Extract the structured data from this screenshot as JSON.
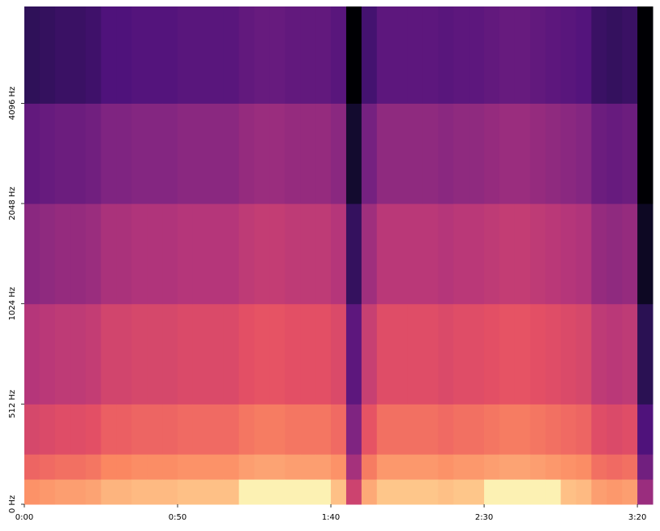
{
  "chart_data": {
    "type": "spectrogram",
    "colormap": "magma",
    "yscale": "symlog",
    "xlim": [
      0,
      205
    ],
    "ylim": [
      0,
      8000
    ],
    "zlim": [
      -80,
      0
    ],
    "xticks": [
      {
        "value": 0,
        "label": "0:00"
      },
      {
        "value": 50,
        "label": "0:50"
      },
      {
        "value": 100,
        "label": "1:40"
      },
      {
        "value": 150,
        "label": "2:30"
      },
      {
        "value": 200,
        "label": "3:20"
      }
    ],
    "yticks": [
      {
        "value": 0,
        "label": "0 Hz"
      },
      {
        "value": 512,
        "label": "512 Hz"
      },
      {
        "value": 1024,
        "label": "1024 Hz"
      },
      {
        "value": 2048,
        "label": "2048 Hz"
      },
      {
        "value": 4096,
        "label": "4096 Hz"
      }
    ],
    "x_bins": [
      0,
      5,
      10,
      15,
      20,
      25,
      30,
      35,
      40,
      45,
      50,
      55,
      60,
      65,
      70,
      75,
      80,
      85,
      90,
      95,
      100,
      105,
      110,
      115,
      120,
      125,
      130,
      135,
      140,
      145,
      150,
      155,
      160,
      165,
      170,
      175,
      180,
      185,
      190,
      195,
      200,
      205
    ],
    "y_bins": [
      0,
      128,
      256,
      512,
      1024,
      2048,
      4096,
      8000
    ],
    "values": [
      [
        -18,
        -26,
        -33,
        -40,
        -48,
        -56,
        -66
      ],
      [
        -17,
        -25,
        -32,
        -39,
        -47,
        -55,
        -65
      ],
      [
        -16,
        -24,
        -31,
        -38,
        -46,
        -54,
        -64
      ],
      [
        -16,
        -24,
        -31,
        -38,
        -46,
        -54,
        -64
      ],
      [
        -15,
        -23,
        -30,
        -37,
        -45,
        -53,
        -63
      ],
      [
        -12,
        -20,
        -27,
        -34,
        -42,
        -50,
        -60
      ],
      [
        -12,
        -20,
        -27,
        -34,
        -42,
        -50,
        -60
      ],
      [
        -11,
        -19,
        -26,
        -33,
        -41,
        -49,
        -59
      ],
      [
        -11,
        -19,
        -26,
        -33,
        -41,
        -49,
        -59
      ],
      [
        -11,
        -19,
        -26,
        -33,
        -41,
        -49,
        -59
      ],
      [
        -10,
        -18,
        -25,
        -32,
        -40,
        -48,
        -58
      ],
      [
        -10,
        -18,
        -25,
        -32,
        -40,
        -48,
        -58
      ],
      [
        -10,
        -18,
        -25,
        -32,
        -40,
        -48,
        -58
      ],
      [
        -10,
        -18,
        -25,
        -32,
        -40,
        -48,
        -58
      ],
      [
        -2,
        -16,
        -23,
        -30,
        -38,
        -46,
        -56
      ],
      [
        -2,
        -15,
        -22,
        -29,
        -37,
        -45,
        -55
      ],
      [
        -2,
        -15,
        -22,
        -29,
        -37,
        -45,
        -55
      ],
      [
        -2,
        -16,
        -23,
        -30,
        -38,
        -46,
        -56
      ],
      [
        -2,
        -16,
        -23,
        -30,
        -38,
        -46,
        -56
      ],
      [
        -2,
        -16,
        -23,
        -30,
        -38,
        -46,
        -56
      ],
      [
        -10,
        -18,
        -25,
        -32,
        -40,
        -48,
        -58
      ],
      [
        -35,
        -43,
        -50,
        -57,
        -65,
        -73,
        -80
      ],
      [
        -14,
        -22,
        -29,
        -36,
        -44,
        -52,
        -62
      ],
      [
        -9,
        -17,
        -24,
        -31,
        -39,
        -47,
        -57
      ],
      [
        -9,
        -17,
        -24,
        -31,
        -39,
        -47,
        -57
      ],
      [
        -9,
        -17,
        -24,
        -31,
        -39,
        -47,
        -57
      ],
      [
        -9,
        -17,
        -24,
        -31,
        -39,
        -47,
        -57
      ],
      [
        -10,
        -18,
        -25,
        -32,
        -40,
        -48,
        -58
      ],
      [
        -9,
        -17,
        -24,
        -31,
        -39,
        -47,
        -57
      ],
      [
        -9,
        -17,
        -24,
        -31,
        -39,
        -47,
        -57
      ],
      [
        -2,
        -16,
        -23,
        -30,
        -38,
        -46,
        -56
      ],
      [
        -2,
        -15,
        -22,
        -29,
        -37,
        -45,
        -55
      ],
      [
        -2,
        -15,
        -22,
        -29,
        -37,
        -45,
        -55
      ],
      [
        -2,
        -16,
        -23,
        -30,
        -38,
        -46,
        -56
      ],
      [
        -2,
        -17,
        -24,
        -31,
        -39,
        -47,
        -57
      ],
      [
        -10,
        -18,
        -25,
        -32,
        -40,
        -48,
        -58
      ],
      [
        -11,
        -19,
        -26,
        -33,
        -41,
        -49,
        -59
      ],
      [
        -16,
        -24,
        -31,
        -38,
        -46,
        -54,
        -64
      ],
      [
        -17,
        -25,
        -32,
        -39,
        -47,
        -55,
        -65
      ],
      [
        -16,
        -24,
        -31,
        -38,
        -46,
        -54,
        -64
      ],
      [
        -45,
        -53,
        -60,
        -67,
        -75,
        -80,
        -80
      ]
    ]
  }
}
